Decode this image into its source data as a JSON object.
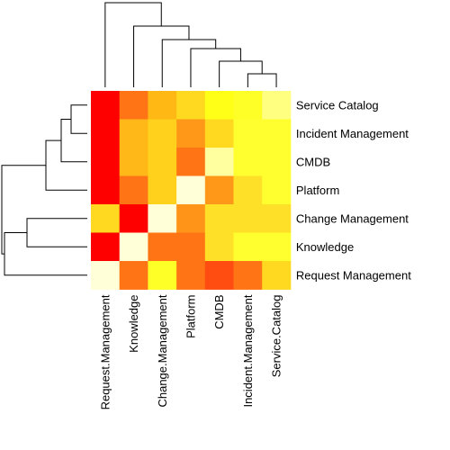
{
  "chart_data": {
    "type": "heatmap",
    "title": "",
    "xlabel": "",
    "ylabel": "",
    "columns": [
      "Request.Management",
      "Knowledge",
      "Change.Management",
      "Platform",
      "CMDB",
      "Incident.Management",
      "Service.Catalog"
    ],
    "rows": [
      "Service Catalog",
      "Incident Management",
      "CMDB",
      "Platform",
      "Change Management",
      "Knowledge",
      "Request Management"
    ],
    "colors": [
      [
        "#ff0000",
        "#ff7414",
        "#ffb814",
        "#ffd820",
        "#ffff18",
        "#ffff28",
        "#ffff80"
      ],
      [
        "#ff0000",
        "#ffb818",
        "#ffd01c",
        "#ff9818",
        "#ffd820",
        "#ffff30",
        "#ffff30"
      ],
      [
        "#ff0000",
        "#ffb818",
        "#ffd01c",
        "#ff7414",
        "#ffffa0",
        "#ffff30",
        "#ffff30"
      ],
      [
        "#ff0000",
        "#ff7414",
        "#ffd01c",
        "#ffffd8",
        "#ff9818",
        "#ffe028",
        "#ffff30"
      ],
      [
        "#ffd820",
        "#ff0000",
        "#ffffd8",
        "#ff9418",
        "#ffe028",
        "#ffe028",
        "#ffe028"
      ],
      [
        "#ff0000",
        "#ffffd8",
        "#ff7414",
        "#ff7414",
        "#ffe028",
        "#ffff30",
        "#ffff30"
      ],
      [
        "#ffffd8",
        "#ff7414",
        "#ffff28",
        "#ff7414",
        "#ff4c10",
        "#ff7414",
        "#ffd820"
      ]
    ],
    "legend": "none",
    "dendrograms": [
      "top",
      "left"
    ]
  }
}
